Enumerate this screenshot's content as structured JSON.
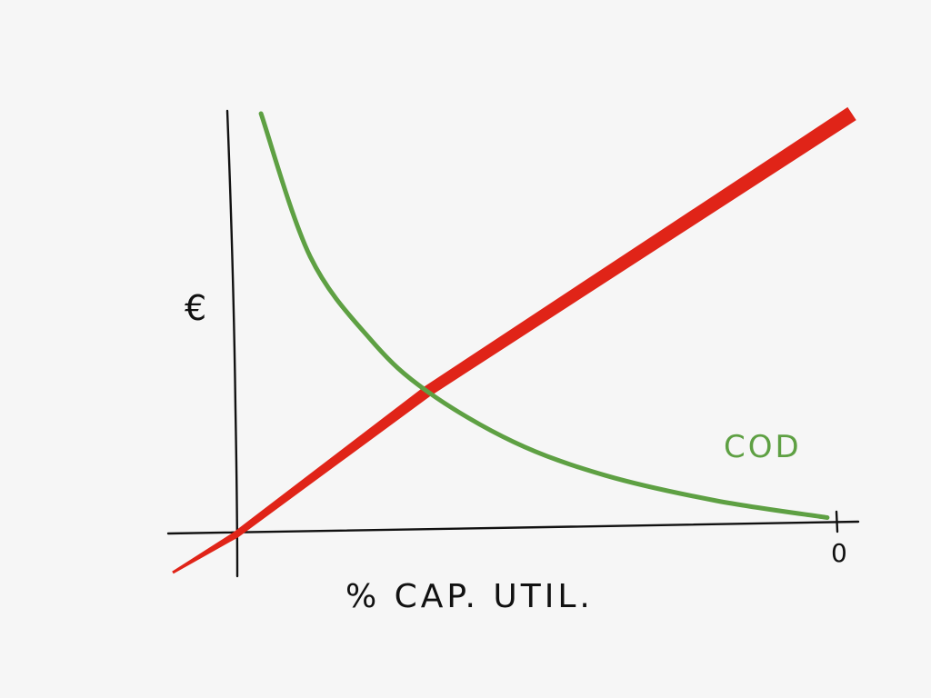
{
  "chart_data": {
    "type": "line",
    "title": "",
    "xlabel": "% CAP. UTIL.",
    "ylabel": "€",
    "x_tick_labels": [
      "0"
    ],
    "grid": false,
    "series": [
      {
        "name": "",
        "color": "#e02418",
        "style": "thick straight line",
        "x": [
          0,
          0.31,
          1
        ],
        "y": [
          0,
          0.34,
          1
        ]
      },
      {
        "name": "COD",
        "color": "#5ea043",
        "style": "decreasing convex curve",
        "x": [
          0.04,
          0.12,
          0.22,
          0.31,
          0.45,
          0.6,
          0.78,
          0.96
        ],
        "y": [
          1.0,
          0.66,
          0.46,
          0.34,
          0.22,
          0.14,
          0.08,
          0.04
        ]
      }
    ],
    "annotations": [
      {
        "text": "COD",
        "color": "#5ea043",
        "attached_to": "green curve"
      }
    ]
  },
  "colors": {
    "background": "#f6f6f6",
    "axis": "#111111",
    "red_line": "#e02418",
    "green_curve": "#5ea043"
  }
}
